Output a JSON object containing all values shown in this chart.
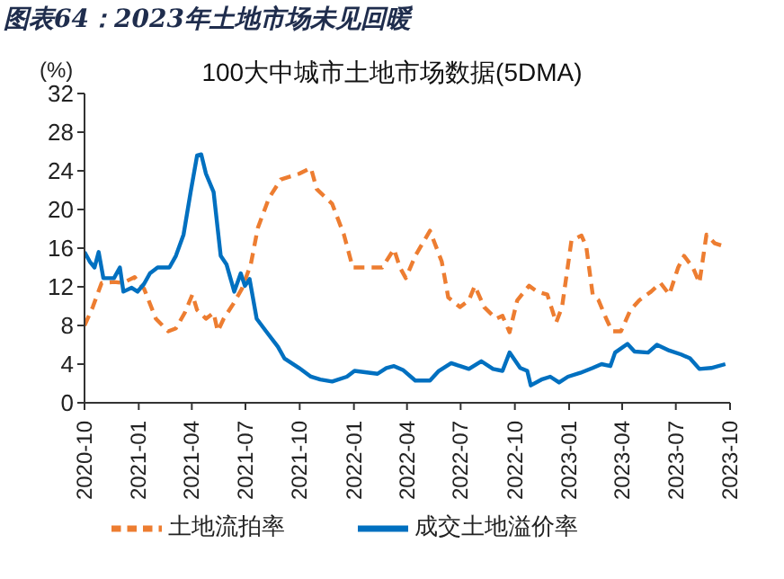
{
  "chart_data": {
    "type": "line",
    "title": "图表64：2023年土地市场未见回暖",
    "subtitle": "100大中城市土地市场数据(5DMA)",
    "ylabel": "(%)",
    "xlim": [
      "2020-10",
      "2023-10"
    ],
    "xticks": [
      "2020-10",
      "2021-01",
      "2021-04",
      "2021-07",
      "2021-10",
      "2022-01",
      "2022-04",
      "2022-07",
      "2022-10",
      "2023-01",
      "2023-04",
      "2023-07",
      "2023-10"
    ],
    "ylim": [
      0,
      32
    ],
    "yticks": [
      0,
      4,
      8,
      12,
      16,
      20,
      24,
      28,
      32
    ],
    "legend": "bottom",
    "series": [
      {
        "name": "土地流拍率",
        "color": "#ed7d31",
        "line_style": "dashed",
        "x": [
          "2020-10-01",
          "2020-10-15",
          "2020-10-30",
          "2020-11-20",
          "2020-12-05",
          "2020-12-25",
          "2021-01-10",
          "2021-01-30",
          "2021-02-20",
          "2021-03-05",
          "2021-03-20",
          "2021-04-02",
          "2021-04-10",
          "2021-04-25",
          "2021-05-08",
          "2021-05-15",
          "2021-05-25",
          "2021-06-10",
          "2021-06-25",
          "2021-07-10",
          "2021-07-22",
          "2021-08-10",
          "2021-08-30",
          "2021-09-30",
          "2021-10-20",
          "2021-10-30",
          "2021-11-25",
          "2021-12-15",
          "2021-12-30",
          "2022-01-25",
          "2022-02-18",
          "2022-03-10",
          "2022-03-20",
          "2022-03-30",
          "2022-04-15",
          "2022-05-10",
          "2022-05-30",
          "2022-06-10",
          "2022-06-30",
          "2022-07-15",
          "2022-07-25",
          "2022-08-10",
          "2022-08-30",
          "2022-09-10",
          "2022-09-22",
          "2022-10-05",
          "2022-10-25",
          "2022-11-08",
          "2022-11-25",
          "2022-12-10",
          "2022-12-20",
          "2023-01-05",
          "2023-01-22",
          "2023-01-30",
          "2023-02-10",
          "2023-02-20",
          "2023-03-05",
          "2023-03-15",
          "2023-03-30",
          "2023-04-15",
          "2023-04-30",
          "2023-05-20",
          "2023-06-05",
          "2023-06-20",
          "2023-07-05",
          "2023-07-15",
          "2023-07-30",
          "2023-08-10",
          "2023-08-22",
          "2023-09-05",
          "2023-09-20"
        ],
        "values": [
          8.0,
          9.9,
          12.4,
          12.5,
          12.4,
          13.0,
          11.8,
          8.7,
          7.4,
          7.7,
          9.3,
          11.2,
          9.6,
          8.7,
          9.3,
          7.4,
          8.7,
          10.2,
          11.8,
          14.3,
          18.1,
          21.2,
          23.1,
          23.7,
          24.3,
          22.1,
          20.6,
          17.4,
          14.0,
          14.0,
          14.0,
          15.9,
          14.0,
          12.9,
          15.2,
          17.8,
          14.6,
          10.9,
          9.9,
          10.6,
          12.1,
          9.9,
          8.7,
          9.0,
          7.3,
          10.6,
          12.1,
          11.5,
          11.2,
          8.3,
          9.9,
          16.8,
          17.3,
          16.2,
          11.2,
          10.6,
          8.7,
          7.4,
          7.4,
          9.6,
          10.6,
          11.5,
          12.4,
          11.2,
          14.0,
          15.2,
          14.0,
          12.4,
          17.4,
          16.5,
          16.2
        ]
      },
      {
        "name": "成交土地溢价率",
        "color": "#0070c0",
        "line_style": "solid",
        "x": [
          "2020-10-01",
          "2020-10-10",
          "2020-10-18",
          "2020-10-25",
          "2020-11-02",
          "2020-11-20",
          "2020-11-30",
          "2020-12-06",
          "2020-12-20",
          "2020-12-30",
          "2021-01-10",
          "2021-01-20",
          "2021-02-02",
          "2021-02-22",
          "2021-03-05",
          "2021-03-18",
          "2021-03-30",
          "2021-04-10",
          "2021-04-17",
          "2021-04-25",
          "2021-05-08",
          "2021-05-20",
          "2021-05-30",
          "2021-06-12",
          "2021-06-23",
          "2021-06-30",
          "2021-07-08",
          "2021-07-20",
          "2021-08-05",
          "2021-08-25",
          "2021-09-05",
          "2021-09-30",
          "2021-10-20",
          "2021-11-05",
          "2021-11-25",
          "2021-12-20",
          "2022-01-02",
          "2022-02-10",
          "2022-02-25",
          "2022-03-10",
          "2022-03-25",
          "2022-04-15",
          "2022-05-10",
          "2022-05-25",
          "2022-06-15",
          "2022-06-30",
          "2022-07-15",
          "2022-08-05",
          "2022-08-25",
          "2022-09-10",
          "2022-09-22",
          "2022-10-10",
          "2022-10-22",
          "2022-10-28",
          "2022-11-15",
          "2022-11-30",
          "2022-12-15",
          "2022-12-30",
          "2023-01-20",
          "2023-02-10",
          "2023-02-25",
          "2023-03-12",
          "2023-03-20",
          "2023-04-10",
          "2023-04-22",
          "2023-05-15",
          "2023-05-30",
          "2023-06-20",
          "2023-07-10",
          "2023-07-25",
          "2023-08-10",
          "2023-08-30",
          "2023-09-23"
        ],
        "values": [
          15.6,
          14.6,
          14.0,
          15.6,
          12.9,
          12.9,
          14.0,
          11.5,
          11.9,
          11.5,
          12.3,
          13.4,
          14.0,
          14.0,
          15.2,
          17.4,
          21.8,
          25.6,
          25.7,
          23.7,
          21.8,
          15.2,
          14.3,
          11.5,
          13.4,
          12.1,
          12.8,
          8.7,
          7.4,
          5.8,
          4.6,
          3.6,
          2.7,
          2.4,
          2.2,
          2.7,
          3.3,
          3.0,
          3.6,
          3.8,
          3.4,
          2.3,
          2.3,
          3.3,
          4.1,
          3.8,
          3.5,
          4.3,
          3.5,
          3.3,
          5.2,
          3.6,
          3.3,
          1.8,
          2.4,
          2.7,
          2.1,
          2.7,
          3.1,
          3.6,
          4.0,
          3.8,
          5.2,
          6.1,
          5.3,
          5.2,
          6.0,
          5.4,
          5.0,
          4.6,
          3.5,
          3.6,
          4.0
        ]
      }
    ]
  }
}
